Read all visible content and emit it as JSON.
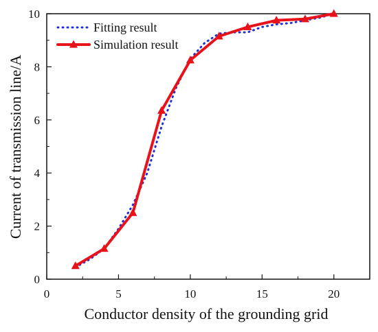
{
  "chart_data": {
    "type": "line",
    "title": "",
    "xlabel": "Conductor density of the grounding grid",
    "ylabel": "Current of transmission line/A",
    "xlim": [
      0,
      22.5
    ],
    "ylim": [
      0,
      10
    ],
    "xticks": [
      0,
      5,
      10,
      15,
      20
    ],
    "yticks": [
      0,
      2,
      4,
      6,
      8,
      10
    ],
    "grid": false,
    "legend_position": "top-left",
    "series": [
      {
        "name": "Fitting result",
        "style": "dotted",
        "color": "#1f2fd6",
        "x": [
          2,
          3,
          4,
          5,
          6,
          7,
          8,
          9,
          10,
          11,
          12,
          13,
          14,
          15,
          16,
          17,
          18,
          19,
          20
        ],
        "y": [
          0.45,
          0.75,
          1.15,
          1.9,
          2.8,
          4.0,
          5.75,
          7.2,
          8.3,
          8.9,
          9.25,
          9.3,
          9.3,
          9.5,
          9.6,
          9.65,
          9.75,
          9.85,
          10.0
        ]
      },
      {
        "name": "Simulation result",
        "style": "solid-triangles",
        "color": "#e8121b",
        "x": [
          2,
          4,
          6,
          8,
          10,
          12,
          14,
          16,
          18,
          20
        ],
        "y": [
          0.5,
          1.15,
          2.5,
          6.35,
          8.25,
          9.15,
          9.5,
          9.75,
          9.8,
          10.0
        ]
      }
    ]
  }
}
